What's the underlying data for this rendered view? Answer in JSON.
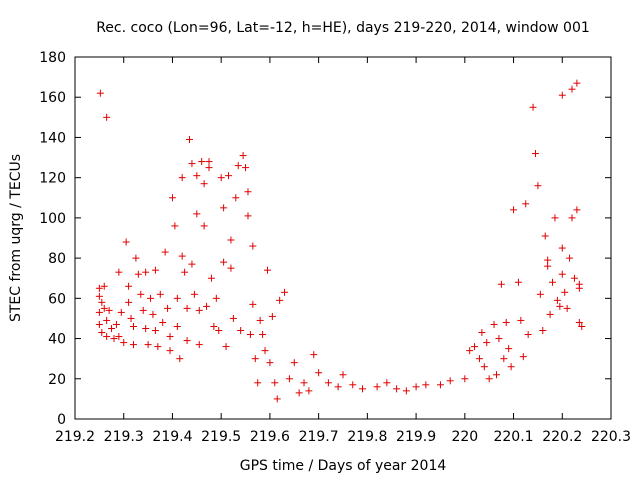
{
  "chart_data": {
    "type": "scatter",
    "title": "Rec. coco (Lon=96, Lat=-12, h=HE), days 219-220, 2014, window 001",
    "xlabel": "GPS time / Days of year 2014",
    "ylabel": "STEC from uqrg / TECUs",
    "xlim": [
      219.2,
      220.3
    ],
    "ylim": [
      0,
      180
    ],
    "xticks": [
      219.2,
      219.3,
      219.4,
      219.5,
      219.6,
      219.7,
      219.8,
      219.9,
      220,
      220.1,
      220.2,
      220.3
    ],
    "xtick_labels": [
      "219.2",
      "219.3",
      "219.4",
      "219.5",
      "219.6",
      "219.7",
      "219.8",
      "219.9",
      "220",
      "220.1",
      "220.2",
      "220.3"
    ],
    "yticks": [
      0,
      20,
      40,
      60,
      80,
      100,
      120,
      140,
      160,
      180
    ],
    "ytick_labels": [
      "0",
      "20",
      "40",
      "60",
      "80",
      "100",
      "120",
      "140",
      "160",
      "180"
    ],
    "marker": "+",
    "marker_color": "#e00000",
    "grid": false,
    "series": [
      {
        "points": [
          [
            219.252,
            162
          ],
          [
            219.265,
            150
          ],
          [
            219.25,
            65
          ],
          [
            219.26,
            66
          ],
          [
            219.25,
            61
          ],
          [
            219.255,
            58
          ],
          [
            219.25,
            53
          ],
          [
            219.26,
            55
          ],
          [
            219.265,
            49
          ],
          [
            219.25,
            47
          ],
          [
            219.255,
            43
          ],
          [
            219.265,
            41
          ],
          [
            219.27,
            54
          ],
          [
            219.275,
            45
          ],
          [
            219.28,
            40
          ],
          [
            219.285,
            47
          ],
          [
            219.29,
            73
          ],
          [
            219.295,
            53
          ],
          [
            219.29,
            41
          ],
          [
            219.3,
            38
          ],
          [
            219.305,
            88
          ],
          [
            219.31,
            66
          ],
          [
            219.31,
            58
          ],
          [
            219.315,
            50
          ],
          [
            219.32,
            46
          ],
          [
            219.32,
            37
          ],
          [
            219.325,
            80
          ],
          [
            219.33,
            72
          ],
          [
            219.335,
            62
          ],
          [
            219.34,
            54
          ],
          [
            219.345,
            45
          ],
          [
            219.35,
            37
          ],
          [
            219.345,
            73
          ],
          [
            219.355,
            60
          ],
          [
            219.36,
            52
          ],
          [
            219.365,
            44
          ],
          [
            219.37,
            36
          ],
          [
            219.365,
            74
          ],
          [
            219.375,
            62
          ],
          [
            219.38,
            48
          ],
          [
            219.385,
            83
          ],
          [
            219.39,
            55
          ],
          [
            219.395,
            41
          ],
          [
            219.395,
            34
          ],
          [
            219.4,
            110
          ],
          [
            219.405,
            96
          ],
          [
            219.41,
            60
          ],
          [
            219.41,
            46
          ],
          [
            219.415,
            30
          ],
          [
            219.42,
            120
          ],
          [
            219.42,
            81
          ],
          [
            219.425,
            73
          ],
          [
            219.43,
            55
          ],
          [
            219.43,
            39
          ],
          [
            219.435,
            139
          ],
          [
            219.44,
            127
          ],
          [
            219.44,
            77
          ],
          [
            219.445,
            62
          ],
          [
            219.45,
            121
          ],
          [
            219.45,
            102
          ],
          [
            219.455,
            54
          ],
          [
            219.455,
            37
          ],
          [
            219.46,
            128
          ],
          [
            219.465,
            117
          ],
          [
            219.465,
            96
          ],
          [
            219.47,
            56
          ],
          [
            219.475,
            128
          ],
          [
            219.475,
            125
          ],
          [
            219.48,
            70
          ],
          [
            219.485,
            46
          ],
          [
            219.49,
            60
          ],
          [
            219.495,
            44
          ],
          [
            219.5,
            120
          ],
          [
            219.505,
            105
          ],
          [
            219.505,
            78
          ],
          [
            219.51,
            36
          ],
          [
            219.515,
            121
          ],
          [
            219.52,
            89
          ],
          [
            219.52,
            75
          ],
          [
            219.525,
            50
          ],
          [
            219.53,
            110
          ],
          [
            219.535,
            126
          ],
          [
            219.54,
            44
          ],
          [
            219.545,
            131
          ],
          [
            219.55,
            125
          ],
          [
            219.555,
            113
          ],
          [
            219.555,
            101
          ],
          [
            219.56,
            42
          ],
          [
            219.565,
            86
          ],
          [
            219.565,
            57
          ],
          [
            219.57,
            30
          ],
          [
            219.575,
            18
          ],
          [
            219.58,
            49
          ],
          [
            219.585,
            42
          ],
          [
            219.59,
            34
          ],
          [
            219.595,
            74
          ],
          [
            219.6,
            28
          ],
          [
            219.605,
            51
          ],
          [
            219.61,
            18
          ],
          [
            219.615,
            10
          ],
          [
            219.62,
            59
          ],
          [
            219.63,
            63
          ],
          [
            219.64,
            20
          ],
          [
            219.65,
            28
          ],
          [
            219.66,
            13
          ],
          [
            219.67,
            18
          ],
          [
            219.68,
            14
          ],
          [
            219.69,
            32
          ],
          [
            219.7,
            23
          ],
          [
            219.72,
            18
          ],
          [
            219.74,
            16
          ],
          [
            219.75,
            22
          ],
          [
            219.77,
            17
          ],
          [
            219.79,
            15
          ],
          [
            219.82,
            16
          ],
          [
            219.84,
            18
          ],
          [
            219.86,
            15
          ],
          [
            219.88,
            14
          ],
          [
            219.9,
            16
          ],
          [
            219.92,
            17
          ],
          [
            219.95,
            17
          ],
          [
            219.97,
            19
          ],
          [
            220.0,
            20
          ],
          [
            220.01,
            34
          ],
          [
            220.02,
            36
          ],
          [
            220.03,
            30
          ],
          [
            220.035,
            43
          ],
          [
            220.04,
            26
          ],
          [
            220.045,
            38
          ],
          [
            220.05,
            20
          ],
          [
            220.06,
            47
          ],
          [
            220.065,
            22
          ],
          [
            220.07,
            40
          ],
          [
            220.075,
            67
          ],
          [
            220.08,
            30
          ],
          [
            220.085,
            48
          ],
          [
            220.09,
            35
          ],
          [
            220.095,
            26
          ],
          [
            220.1,
            104
          ],
          [
            220.11,
            68
          ],
          [
            220.115,
            49
          ],
          [
            220.12,
            31
          ],
          [
            220.125,
            107
          ],
          [
            220.13,
            42
          ],
          [
            220.14,
            155
          ],
          [
            220.145,
            132
          ],
          [
            220.15,
            116
          ],
          [
            220.155,
            62
          ],
          [
            220.16,
            44
          ],
          [
            220.165,
            91
          ],
          [
            220.17,
            79
          ],
          [
            220.17,
            76
          ],
          [
            220.175,
            52
          ],
          [
            220.18,
            68
          ],
          [
            220.185,
            100
          ],
          [
            220.19,
            59
          ],
          [
            220.195,
            56
          ],
          [
            220.2,
            161
          ],
          [
            220.2,
            85
          ],
          [
            220.2,
            72
          ],
          [
            220.205,
            63
          ],
          [
            220.21,
            55
          ],
          [
            220.215,
            80
          ],
          [
            220.22,
            164
          ],
          [
            220.22,
            100
          ],
          [
            220.225,
            70
          ],
          [
            220.23,
            167
          ],
          [
            220.23,
            104
          ],
          [
            220.235,
            67
          ],
          [
            220.235,
            65
          ],
          [
            220.235,
            48
          ],
          [
            220.24,
            46
          ]
        ]
      }
    ]
  }
}
